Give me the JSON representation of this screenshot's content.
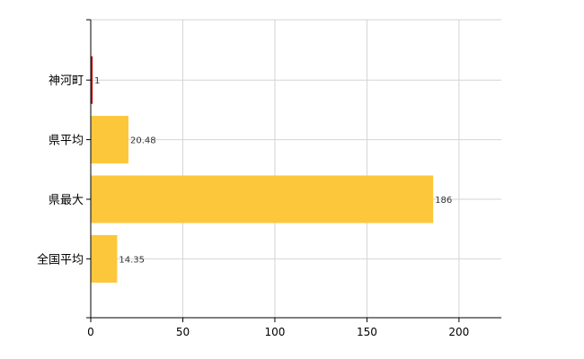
{
  "chart_data": {
    "type": "bar",
    "orientation": "horizontal",
    "categories": [
      "神河町",
      "県平均",
      "県最大",
      "全国平均"
    ],
    "values": [
      1,
      20.48,
      186,
      14.35
    ],
    "data_labels": [
      "1",
      "20.48",
      "186",
      "14.35"
    ],
    "bar_colors": [
      "#c00000",
      "#fcc73a",
      "#fcc73a",
      "#fcc73a"
    ],
    "xlim": [
      0,
      223
    ],
    "xticks": [
      0,
      50,
      100,
      150,
      200
    ],
    "grid": true,
    "legend": "none"
  }
}
